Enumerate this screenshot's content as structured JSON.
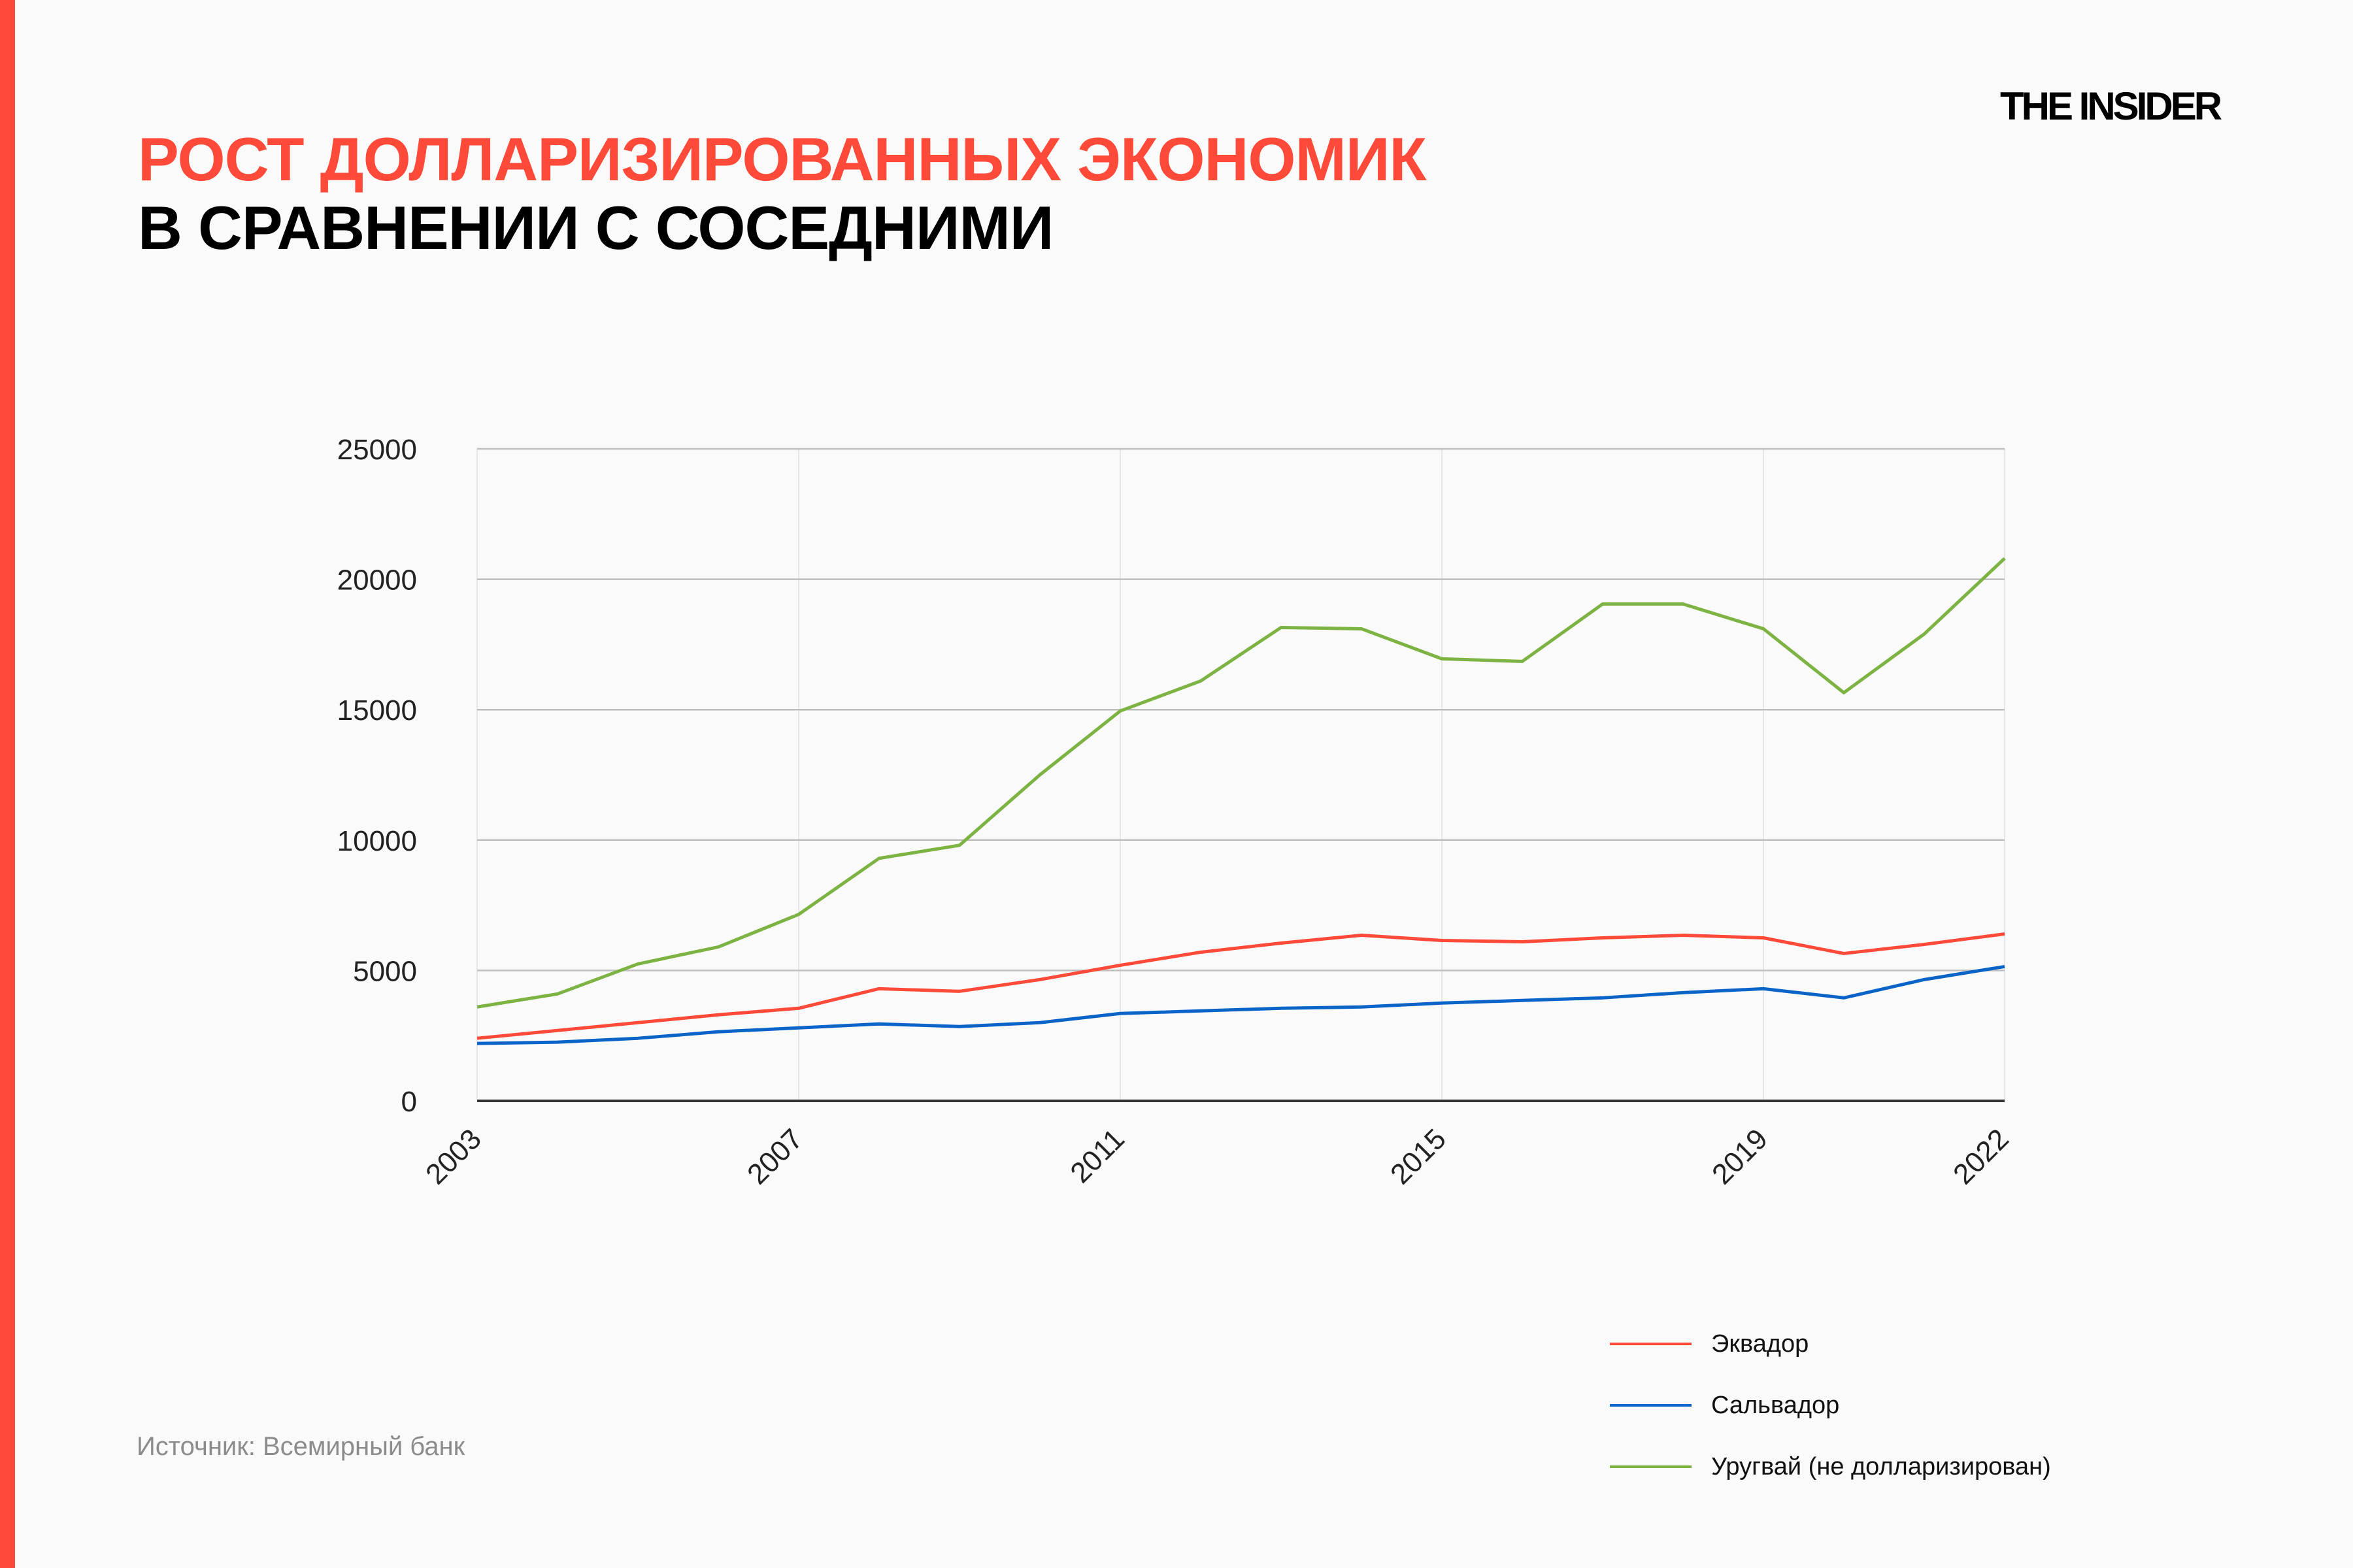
{
  "header": {
    "title_line1": "РОСТ ДОЛЛАРИЗИРОВАННЫХ ЭКОНОМИК",
    "title_line2": "В СРАВНЕНИИ С СОСЕДНИМИ",
    "logo": "THE INSIDER"
  },
  "source": "Источник: Всемирный банк",
  "colors": {
    "accent": "#ff4a3a",
    "ecuador": "#ff4a3a",
    "salvador": "#0a64c8",
    "uruguay": "#7cb342"
  },
  "chart_data": {
    "type": "line",
    "x": [
      2003,
      2004,
      2005,
      2006,
      2007,
      2008,
      2009,
      2010,
      2011,
      2012,
      2013,
      2014,
      2015,
      2016,
      2017,
      2018,
      2019,
      2020,
      2021,
      2022
    ],
    "x_ticks": [
      "2003",
      "2007",
      "2011",
      "2015",
      "2019",
      "2022"
    ],
    "y_ticks": [
      "0",
      "5000",
      "10000",
      "15000",
      "20000",
      "25000"
    ],
    "ylim": [
      0,
      25000
    ],
    "grid": true,
    "legend_placement": "bottom-right",
    "series": [
      {
        "name": "Эквадор",
        "color": "#ff4a3a",
        "values": [
          2400,
          2700,
          3000,
          3300,
          3550,
          4300,
          4200,
          4650,
          5200,
          5700,
          6050,
          6350,
          6150,
          6100,
          6250,
          6350,
          6250,
          5650,
          6000,
          6400
        ]
      },
      {
        "name": "Сальвадор",
        "color": "#0a64c8",
        "values": [
          2200,
          2250,
          2400,
          2650,
          2800,
          2950,
          2850,
          3000,
          3350,
          3450,
          3550,
          3600,
          3750,
          3850,
          3950,
          4150,
          4300,
          3950,
          4650,
          5150
        ]
      },
      {
        "name": "Уругвай (не долларизирован)",
        "color": "#7cb342",
        "values": [
          3600,
          4100,
          5250,
          5900,
          7150,
          9300,
          9800,
          12500,
          14950,
          16100,
          18150,
          18100,
          16950,
          16850,
          19050,
          19050,
          18100,
          15650,
          17900,
          20800
        ]
      }
    ]
  }
}
